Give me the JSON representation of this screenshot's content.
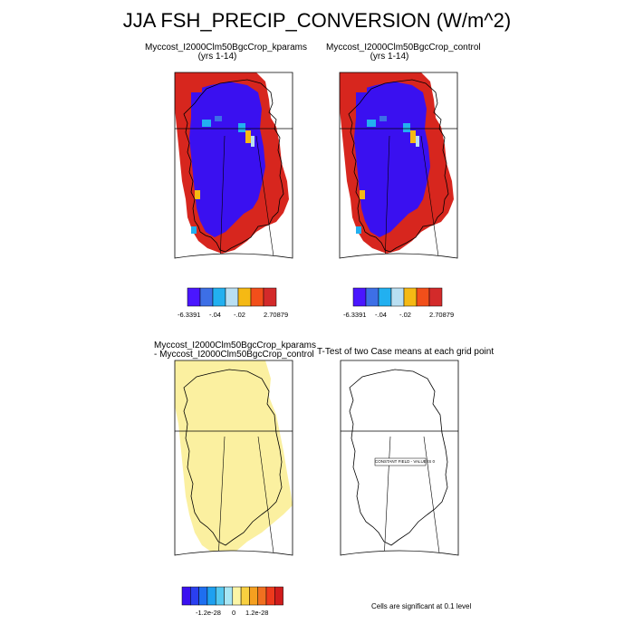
{
  "title": "JJA FSH_PRECIP_CONVERSION (W/m^2)",
  "panels": [
    {
      "title_line1": "Myccost_I2000Clm50BgcCrop_kparams",
      "title_line2": "(yrs 1-14)"
    },
    {
      "title_line1": "Myccost_I2000Clm50BgcCrop_control",
      "title_line2": "(yrs 1-14)"
    },
    {
      "title_line1": "Myccost_I2000Clm50BgcCrop_kparams",
      "title_line2": "- Myccost_I2000Clm50BgcCrop_control"
    },
    {
      "title_line1": "T-Test of two Case means at each grid point",
      "title_line2": ""
    }
  ],
  "top_colorbar": {
    "colors": [
      "#4a16ff",
      "#3d6fe6",
      "#22b0f0",
      "#b9dff2",
      "#f5b914",
      "#f24f1a",
      "#d32a2a"
    ],
    "labels": [
      "-6.3391",
      "-.04",
      "-.02",
      "2.70879"
    ]
  },
  "diff_colorbar": {
    "colors": [
      "#3a10f0",
      "#2a3ff0",
      "#1e6ff0",
      "#1ea0f0",
      "#55c8f0",
      "#a8e6f4",
      "#fbf5a6",
      "#f8d040",
      "#f5a020",
      "#f07020",
      "#ee3a1c",
      "#d01c1c"
    ],
    "labels": [
      "-1.2e-28",
      "0",
      "1.2e-28"
    ]
  },
  "ttest_box_text": "CONSTANT FIELD - VALUE IS 0",
  "sig_note": "Cells are significant at 0.1 level",
  "map_colors": {
    "land_blue": "#3a10f0",
    "land_red": "#d7261e",
    "diff_fill": "#fbf0a0",
    "frame": "#000000"
  }
}
